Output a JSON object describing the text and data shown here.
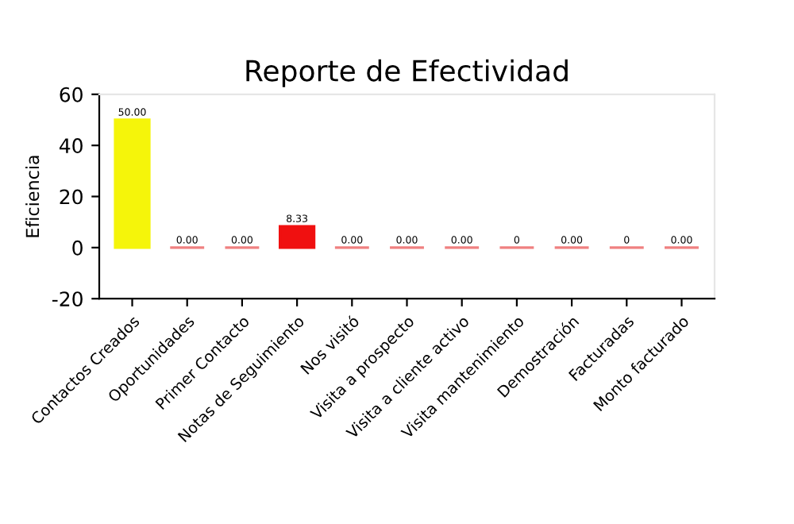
{
  "chart_data": {
    "type": "bar",
    "title": "Reporte de Efectividad",
    "ylabel": "Eficiencia",
    "categories": [
      "Contactos Creados",
      "Oportunidades",
      "Primer Contacto",
      "Notas de Seguimiento",
      "Nos visitó",
      "Visita a prospecto",
      "Visita a cliente activo",
      "Visita mantenimiento",
      "Demostración",
      "Facturadas",
      "Monto facturado"
    ],
    "values": [
      50.0,
      0,
      0,
      8.33,
      0,
      0,
      0,
      0,
      0,
      0,
      0
    ],
    "colors": [
      "#f5f50a",
      "#f08080",
      "#f08080",
      "#f01010",
      "#f08080",
      "#f08080",
      "#f08080",
      "#f08080",
      "#f08080",
      "#f08080",
      "#f08080"
    ],
    "value_labels": [
      "50.00",
      "0.00",
      "0.00",
      "8.33",
      "0.00",
      "0.00",
      "0.00",
      "0",
      "0.00",
      "0",
      "0.00"
    ],
    "ylim": [
      -20,
      60
    ],
    "yticks": [
      -20,
      0,
      20,
      40,
      60
    ],
    "grid": false,
    "legend": false
  }
}
